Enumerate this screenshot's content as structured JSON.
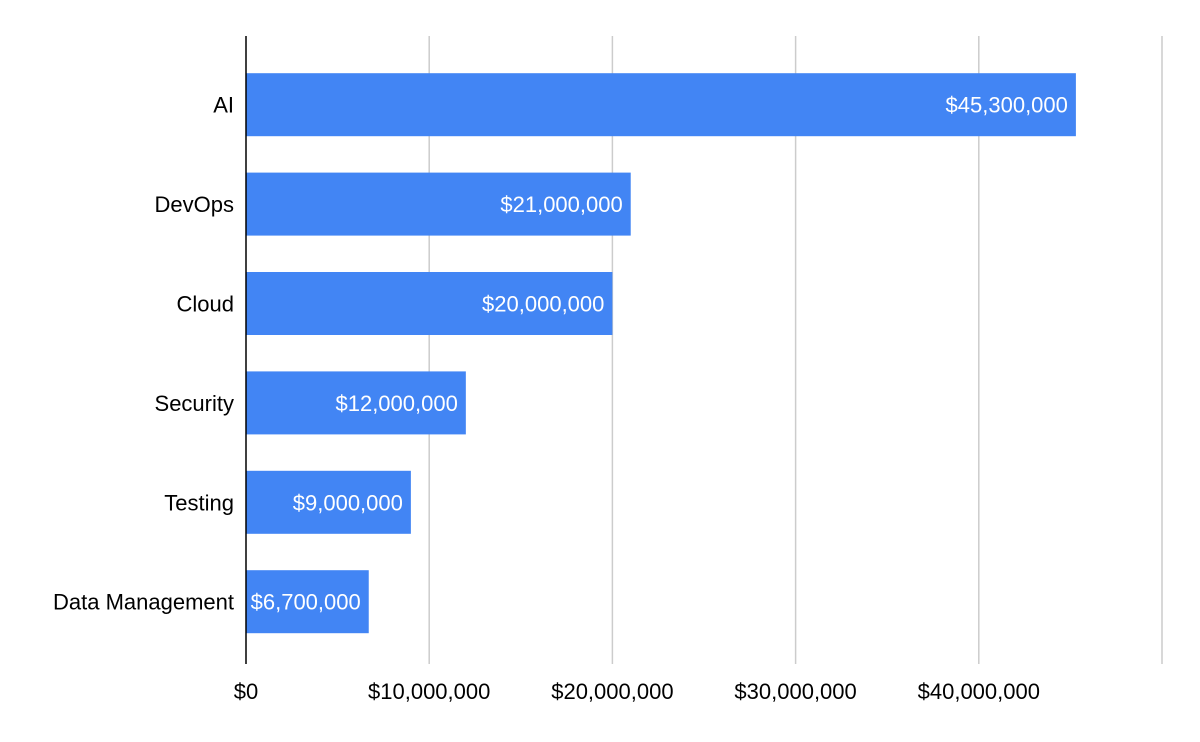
{
  "chart_data": {
    "type": "bar",
    "orientation": "horizontal",
    "categories": [
      "AI",
      "DevOps",
      "Cloud",
      "Security",
      "Testing",
      "Data Management"
    ],
    "values": [
      45300000,
      21000000,
      20000000,
      12000000,
      9000000,
      6700000
    ],
    "data_labels": [
      "$45,300,000",
      "$21,000,000",
      "$20,000,000",
      "$12,000,000",
      "$9,000,000",
      "$6,700,000"
    ],
    "x_ticks": [
      0,
      10000000,
      20000000,
      30000000,
      40000000,
      50000000
    ],
    "x_tick_labels": [
      "$0",
      "$10,000,000",
      "$20,000,000",
      "$30,000,000",
      "$40,000,000",
      ""
    ],
    "xlim": [
      0,
      50000000
    ],
    "grid": true,
    "legend": "none",
    "bar_color": "#4285F4",
    "grid_color": "#cccccc",
    "axis_color": "#000000"
  }
}
